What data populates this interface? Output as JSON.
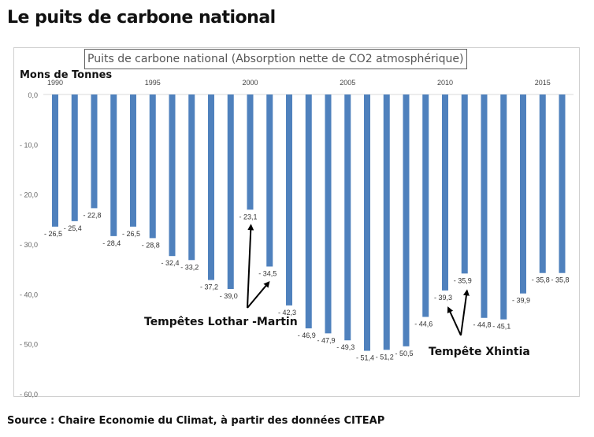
{
  "page": {
    "title": "Le puits de carbone national",
    "source": "Source : Chaire Economie du Climat, à partir des données CITEAP"
  },
  "chart_data": {
    "type": "bar",
    "title": "Puits de carbone national (Absorption nette de CO2 atmosphérique)",
    "ylabel": "Mons de Tonnes",
    "xlabel": "",
    "ylim": [
      -60,
      0
    ],
    "yticks": [
      0,
      -10,
      -20,
      -30,
      -40,
      -50,
      -60
    ],
    "ytick_labels": [
      "0,0",
      "- 10,0",
      "- 20,0",
      "- 30,0",
      "- 40,0",
      "- 50,0",
      "- 60,0"
    ],
    "xtick_years": [
      1990,
      1995,
      2000,
      2005,
      2010,
      2015
    ],
    "color": "#4f81bd",
    "grid": false,
    "categories": [
      1990,
      1991,
      1992,
      1993,
      1994,
      1995,
      1996,
      1997,
      1998,
      1999,
      2000,
      2001,
      2002,
      2003,
      2004,
      2005,
      2006,
      2007,
      2008,
      2009,
      2010,
      2011,
      2012,
      2013,
      2014,
      2015,
      2016
    ],
    "values": [
      -26.5,
      -25.4,
      -22.8,
      -28.4,
      -26.5,
      -28.8,
      -32.4,
      -33.2,
      -37.2,
      -39.0,
      -23.1,
      -34.5,
      -42.3,
      -46.9,
      -47.9,
      -49.3,
      -51.4,
      -51.2,
      -50.5,
      -44.6,
      -39.3,
      -35.9,
      -44.8,
      -45.1,
      -39.9,
      -35.8,
      -35.8
    ],
    "data_labels": [
      "- 26,5",
      "- 25,4",
      "- 22,8",
      "- 28,4",
      "- 26,5",
      "- 28,8",
      "- 32,4",
      "- 33,2",
      "- 37,2",
      "- 39,0",
      "- 23,1",
      "- 34,5",
      "- 42,3",
      "- 46,9",
      "- 47,9",
      "- 49,3",
      "- 51,4",
      "- 51,2",
      "- 50,5",
      "- 44,6",
      "- 39,3",
      "- 35,9",
      "- 44,8",
      "- 45,1",
      "- 39,9",
      "- 35,8",
      "- 35,8"
    ],
    "annotations": [
      {
        "text": "Tempêtes Lothar -Martin",
        "points_to": [
          2000,
          2001
        ]
      },
      {
        "text": "Tempête Xhintia",
        "points_to": [
          2010,
          2011
        ]
      }
    ]
  }
}
